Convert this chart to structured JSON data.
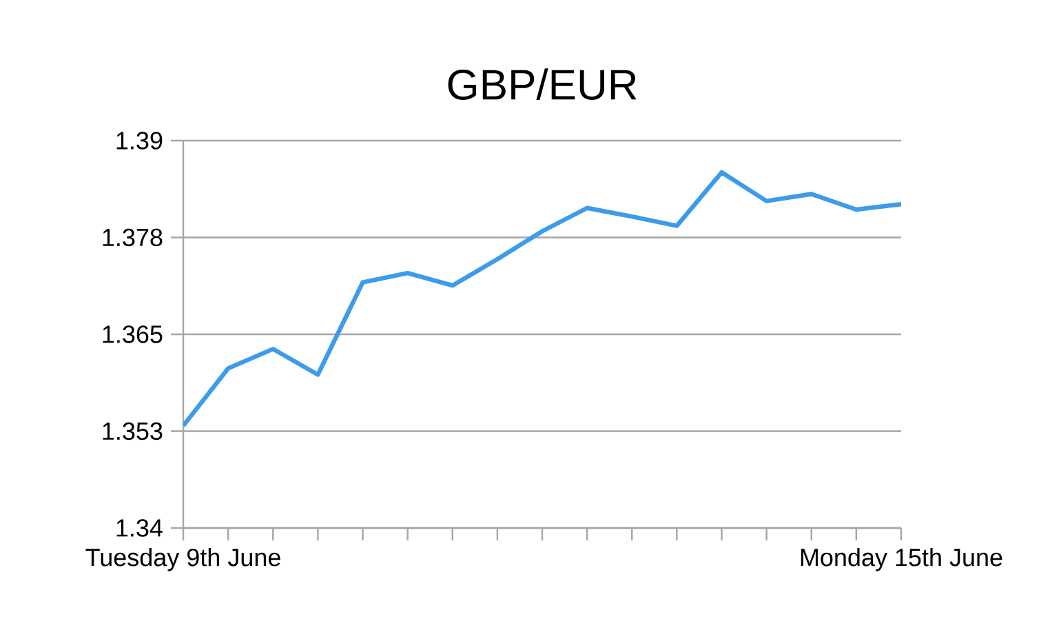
{
  "chart_data": {
    "type": "line",
    "title": "GBP/EUR",
    "categories": [
      "Tuesday 9th June",
      null,
      null,
      null,
      null,
      null,
      null,
      null,
      null,
      null,
      null,
      null,
      null,
      null,
      null,
      null,
      "Monday 15th June"
    ],
    "series": [
      {
        "color": "#3d9be9",
        "values": [
          1.3532,
          1.3606,
          1.3631,
          1.3598,
          1.3717,
          1.3729,
          1.3713,
          1.3747,
          1.3783,
          1.3813,
          1.3802,
          1.379,
          1.3859,
          1.3822,
          1.3831,
          1.3811,
          1.3818
        ]
      }
    ],
    "ylim": [
      1.34,
      1.39
    ],
    "yticks": [
      {
        "value": 1.34,
        "label": "1.34"
      },
      {
        "value": 1.3525,
        "label": "1.353"
      },
      {
        "value": 1.365,
        "label": "1.365"
      },
      {
        "value": 1.3775,
        "label": "1.378"
      },
      {
        "value": 1.39,
        "label": "1.39"
      }
    ],
    "grid": "y"
  }
}
